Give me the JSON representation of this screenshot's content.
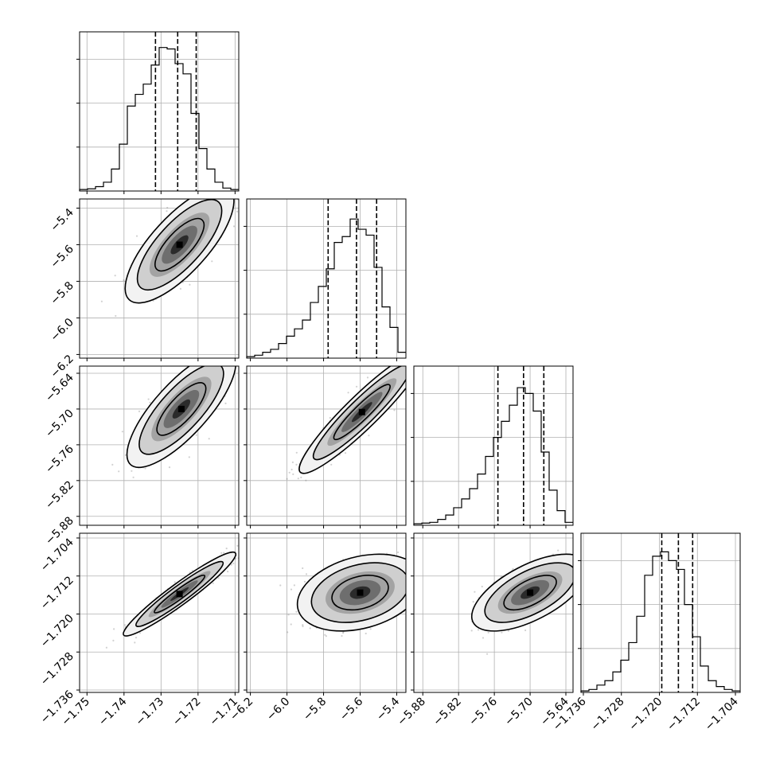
{
  "chart_data": {
    "type": "corner",
    "grid": true,
    "parameters": [
      {
        "range": [
          -1.752,
          -1.709
        ],
        "ticks": [
          -1.75,
          -1.74,
          -1.73,
          -1.72,
          -1.71
        ],
        "tick_labels": [
          "−1.75",
          "−1.74",
          "−1.73",
          "−1.72",
          "−1.71"
        ],
        "quantiles": [
          -1.7315,
          -1.7255,
          -1.7205
        ],
        "hist_relative": [
          0.01,
          0.015,
          0.03,
          0.06,
          0.15,
          0.32,
          0.58,
          0.66,
          0.73,
          0.86,
          0.98,
          0.97,
          0.87,
          0.8,
          0.53,
          0.29,
          0.15,
          0.06,
          0.02,
          0.01
        ],
        "mode": [
          -1.725,
          0.0
        ]
      },
      {
        "range": [
          -6.22,
          -5.35
        ],
        "ticks": [
          -6.2,
          -6.0,
          -5.8,
          -5.6,
          -5.4
        ],
        "tick_labels": [
          "−6.2",
          "−6.0",
          "−5.8",
          "−5.6",
          "−5.4"
        ],
        "quantiles": [
          -5.775,
          -5.62,
          -5.51
        ],
        "hist_relative": [
          0.01,
          0.02,
          0.04,
          0.06,
          0.1,
          0.15,
          0.2,
          0.26,
          0.38,
          0.49,
          0.61,
          0.79,
          0.83,
          0.95,
          0.88,
          0.84,
          0.62,
          0.35,
          0.21,
          0.04
        ],
        "mode": [
          -5.6,
          0.0
        ]
      },
      {
        "range": [
          -5.895,
          -5.628
        ],
        "ticks": [
          -5.88,
          -5.82,
          -5.76,
          -5.7,
          -5.64
        ],
        "tick_labels": [
          "−5.88",
          "−5.82",
          "−5.76",
          "−5.70",
          "−5.64"
        ],
        "quantiles": [
          -5.754,
          -5.711,
          -5.677
        ],
        "hist_relative": [
          0.01,
          0.015,
          0.02,
          0.04,
          0.07,
          0.12,
          0.18,
          0.25,
          0.35,
          0.47,
          0.6,
          0.71,
          0.82,
          0.94,
          0.9,
          0.78,
          0.5,
          0.24,
          0.1,
          0.02
        ],
        "mode": [
          -5.7,
          0.0
        ]
      },
      {
        "range": [
          -1.7365,
          -1.703
        ],
        "ticks": [
          -1.736,
          -1.728,
          -1.72,
          -1.712,
          -1.704
        ],
        "tick_labels": [
          "−1.736",
          "−1.728",
          "−1.720",
          "−1.712",
          "−1.704"
        ],
        "quantiles": [
          -1.7195,
          -1.716,
          -1.713
        ],
        "hist_relative": [
          0.01,
          0.02,
          0.05,
          0.08,
          0.14,
          0.22,
          0.34,
          0.52,
          0.8,
          0.93,
          0.96,
          0.9,
          0.84,
          0.6,
          0.38,
          0.18,
          0.08,
          0.04,
          0.02,
          0.01
        ],
        "mode": [
          -1.716,
          0.0
        ]
      }
    ],
    "pairs": [
      {
        "row": 1,
        "col": 0,
        "center": [
          -1.725,
          -5.6
        ],
        "spread": [
          0.006,
          0.13
        ],
        "corr": 0.75
      },
      {
        "row": 2,
        "col": 0,
        "center": [
          -1.7245,
          -5.7
        ],
        "spread": [
          0.006,
          0.04
        ],
        "corr": 0.78
      },
      {
        "row": 2,
        "col": 1,
        "center": [
          -5.59,
          -5.705
        ],
        "spread": [
          0.14,
          0.042
        ],
        "corr": 0.93
      },
      {
        "row": 3,
        "col": 0,
        "center": [
          -1.725,
          -1.7158
        ],
        "spread": [
          0.0062,
          0.0036
        ],
        "corr": 0.95
      },
      {
        "row": 3,
        "col": 1,
        "center": [
          -5.6,
          -1.7155
        ],
        "spread": [
          0.14,
          0.0033
        ],
        "corr": 0.3
      },
      {
        "row": 3,
        "col": 2,
        "center": [
          -5.7,
          -1.7155
        ],
        "spread": [
          0.04,
          0.0033
        ],
        "corr": 0.62
      }
    ]
  }
}
